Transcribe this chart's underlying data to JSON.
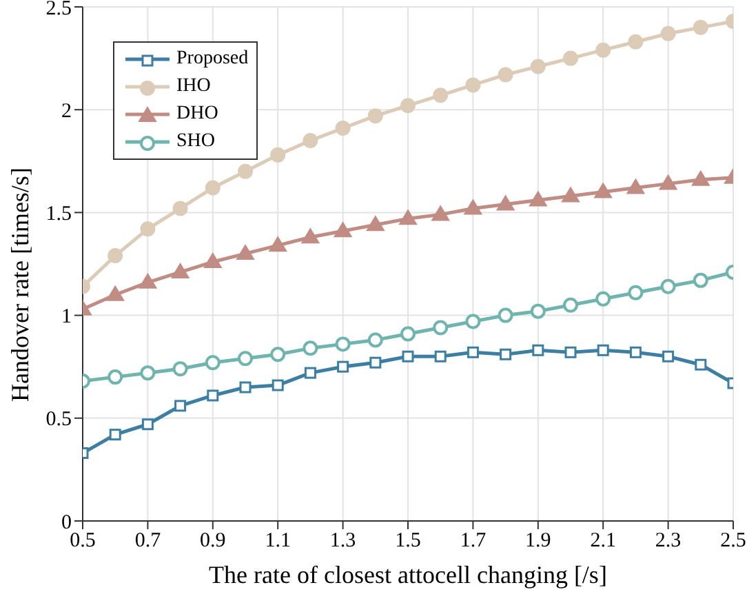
{
  "chart_data": {
    "type": "line",
    "xlabel": "The rate of closest attocell changing [/s]",
    "ylabel": "Handover rate [times/s]",
    "x": [
      0.5,
      0.6,
      0.7,
      0.8,
      0.9,
      1.0,
      1.1,
      1.2,
      1.3,
      1.4,
      1.5,
      1.6,
      1.7,
      1.8,
      1.9,
      2.0,
      2.1,
      2.2,
      2.3,
      2.4,
      2.5
    ],
    "series": [
      {
        "name": "Proposed",
        "color": "#3c7fa3",
        "marker": "square",
        "values": [
          0.33,
          0.42,
          0.47,
          0.56,
          0.61,
          0.65,
          0.66,
          0.72,
          0.75,
          0.77,
          0.8,
          0.8,
          0.82,
          0.81,
          0.83,
          0.82,
          0.83,
          0.82,
          0.8,
          0.76,
          0.67
        ]
      },
      {
        "name": "IHO",
        "color": "#dccbb6",
        "marker": "circle",
        "values": [
          1.14,
          1.29,
          1.42,
          1.52,
          1.62,
          1.7,
          1.78,
          1.85,
          1.91,
          1.97,
          2.02,
          2.07,
          2.12,
          2.17,
          2.21,
          2.25,
          2.29,
          2.33,
          2.37,
          2.4,
          2.43
        ]
      },
      {
        "name": "DHO",
        "color": "#c08c83",
        "marker": "triangle",
        "values": [
          1.03,
          1.1,
          1.16,
          1.21,
          1.26,
          1.3,
          1.34,
          1.38,
          1.41,
          1.44,
          1.47,
          1.49,
          1.52,
          1.54,
          1.56,
          1.58,
          1.6,
          1.62,
          1.64,
          1.66,
          1.67
        ]
      },
      {
        "name": "SHO",
        "color": "#6fb4ad",
        "marker": "circle",
        "values": [
          0.68,
          0.7,
          0.72,
          0.74,
          0.77,
          0.79,
          0.81,
          0.84,
          0.86,
          0.88,
          0.91,
          0.94,
          0.97,
          1.0,
          1.02,
          1.05,
          1.08,
          1.11,
          1.14,
          1.17,
          1.21
        ]
      }
    ],
    "xlim": [
      0.5,
      2.5
    ],
    "xticks": [
      0.5,
      0.7,
      0.9,
      1.1,
      1.3,
      1.5,
      1.7,
      1.9,
      2.1,
      2.3,
      2.5
    ],
    "ylim": [
      0,
      2.5
    ],
    "yticks": [
      0,
      0.5,
      1,
      1.5,
      2,
      2.5
    ],
    "grid": true,
    "legend": "top left",
    "line_style": "solid"
  }
}
